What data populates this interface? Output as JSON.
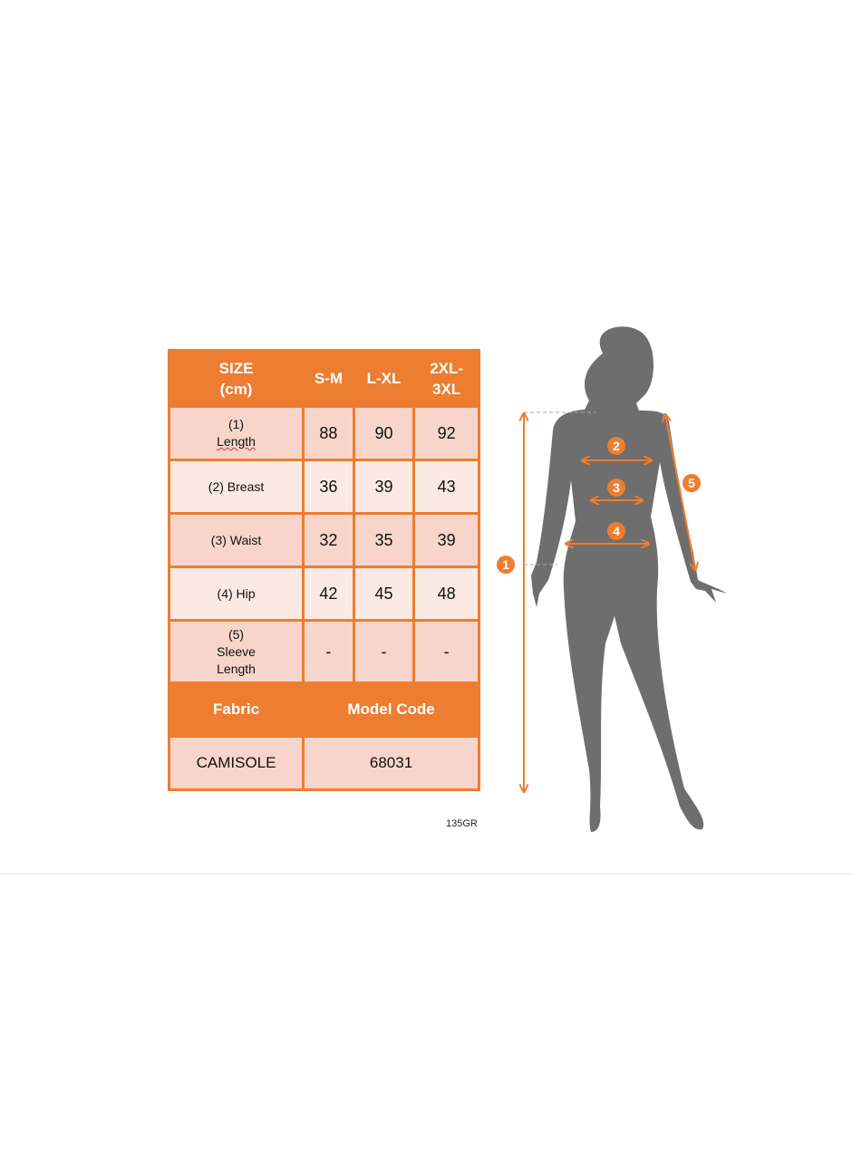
{
  "table": {
    "header": [
      "SIZE (cm)",
      "S-M",
      "L-XL",
      "2XL-3XL"
    ],
    "header_lines": [
      [
        "SIZE",
        "(cm)"
      ],
      [
        "S-M"
      ],
      [
        "L-XL"
      ],
      [
        "2XL-",
        "3XL"
      ]
    ],
    "rows": [
      {
        "label_lines": [
          "(1)",
          "Length"
        ],
        "values": [
          "88",
          "90",
          "92"
        ]
      },
      {
        "label_lines": [
          "(2) Breast"
        ],
        "values": [
          "36",
          "39",
          "43"
        ]
      },
      {
        "label_lines": [
          "(3) Waist"
        ],
        "values": [
          "32",
          "35",
          "39"
        ]
      },
      {
        "label_lines": [
          "(4) Hip"
        ],
        "values": [
          "42",
          "45",
          "48"
        ]
      },
      {
        "label_lines": [
          "(5)",
          "Sleeve",
          "Length"
        ],
        "values": [
          "-",
          "-",
          "-"
        ]
      }
    ],
    "footer_headers": [
      "Fabric",
      "Model Code"
    ],
    "footer_values": [
      "CAMISOLE",
      "68031"
    ]
  },
  "weight_label": "135GR",
  "figure": {
    "markers": [
      "1",
      "2",
      "3",
      "4",
      "5"
    ],
    "accent_color": "#ED7D31",
    "silhouette_color": "#6E6E6E"
  },
  "colors": {
    "header": "#ED7D31",
    "cell_dark": "#F8D5CB",
    "cell_light": "#FBEAE4"
  }
}
